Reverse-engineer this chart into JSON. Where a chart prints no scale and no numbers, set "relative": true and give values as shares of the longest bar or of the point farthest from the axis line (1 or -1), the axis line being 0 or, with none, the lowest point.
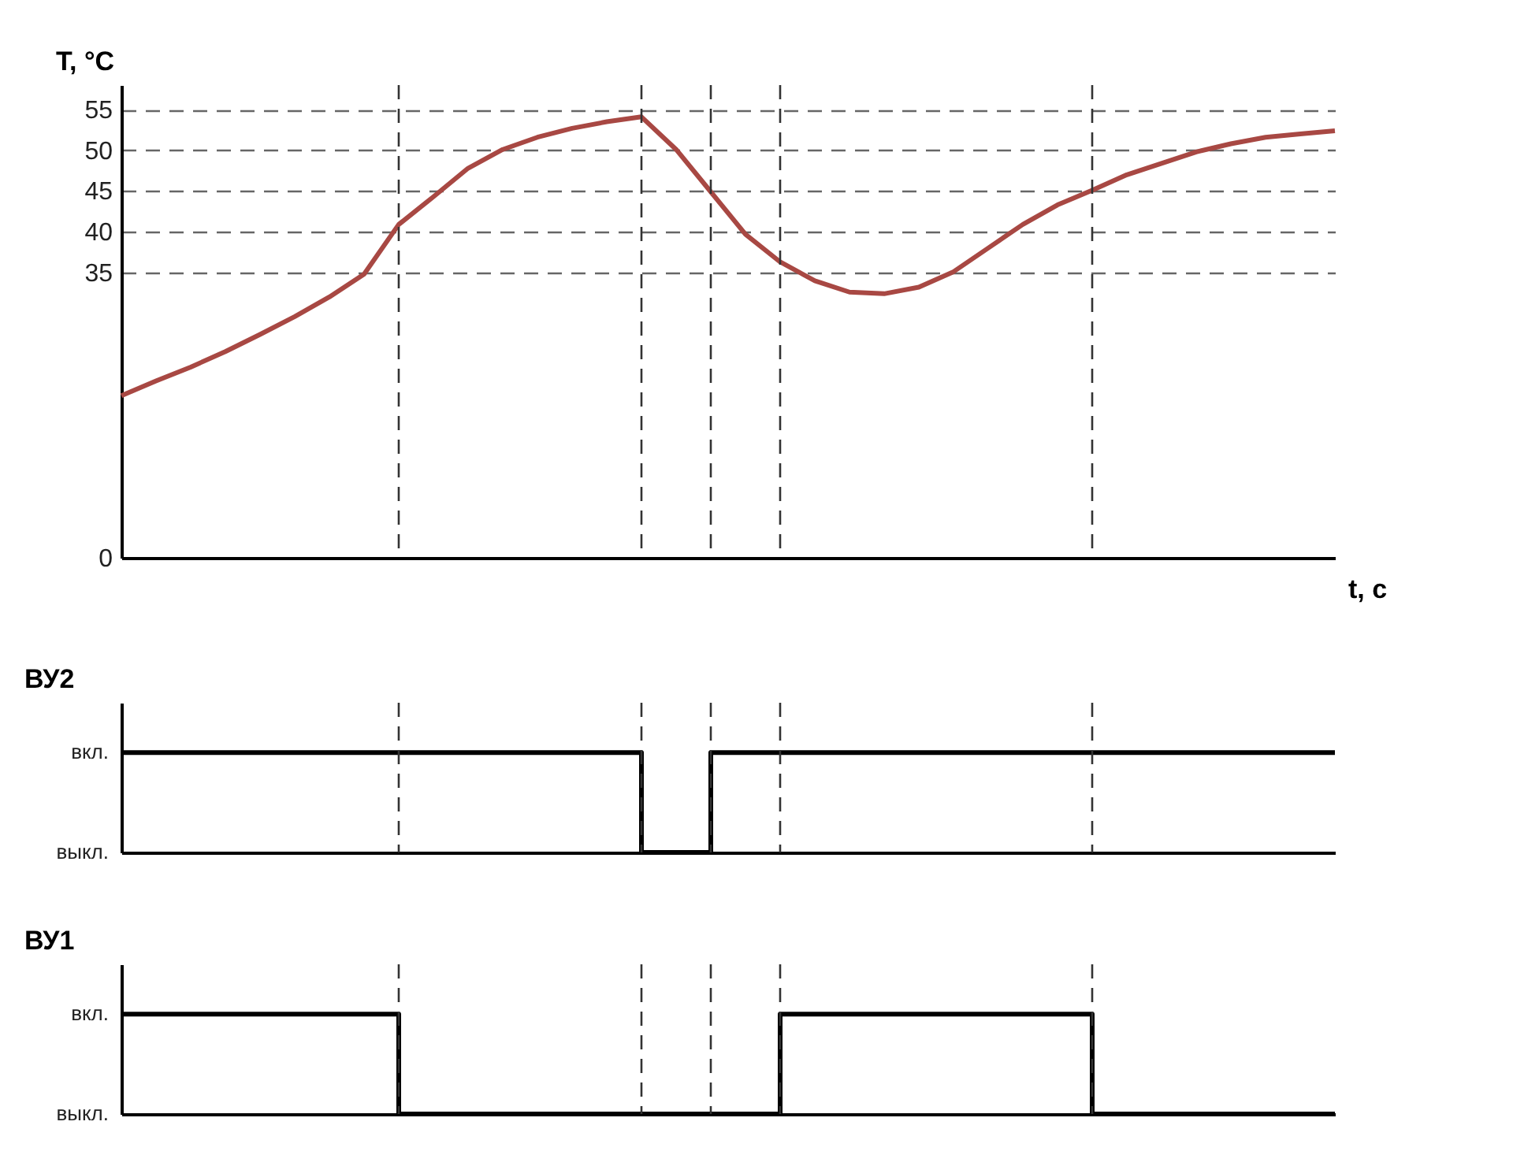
{
  "chart_data": [
    {
      "type": "line",
      "ylabel": "T, °C",
      "xlabel": "t, c",
      "tick_labels": "y",
      "ylim": [
        0,
        58
      ],
      "yticks": [
        0,
        35,
        40,
        45,
        50,
        55
      ],
      "grid": true,
      "categories": [
        null,
        null,
        null,
        null,
        null,
        null,
        null,
        null,
        null,
        null,
        null,
        null,
        null,
        null,
        null,
        null,
        null,
        null,
        null,
        null,
        null,
        null,
        null,
        null,
        null,
        null,
        null,
        null,
        null,
        null,
        null,
        null,
        null,
        null,
        null,
        null
      ],
      "series": [
        {
          "color": "#a84843",
          "values": [
            19.9,
            21.7,
            23.4,
            25.3,
            27.4,
            29.6,
            32,
            34.8,
            40.9,
            44.3,
            47.8,
            50.1,
            51.6,
            52.7,
            53.5,
            54.1,
            50.1,
            44.9,
            39.7,
            36.3,
            34,
            32.6,
            32.4,
            33.2,
            35.1,
            38,
            40.9,
            43.3,
            45.1,
            47,
            48.4,
            49.8,
            50.8,
            51.6,
            52,
            52.4
          ]
        }
      ]
    },
    {
      "type": "step",
      "ylabel": "ВУ2",
      "tick_labels": false,
      "relative": true,
      "grid": true,
      "annotations": [
        "вкл.",
        "выкл."
      ],
      "categories": [
        null,
        null,
        null,
        null,
        null,
        null,
        null,
        null,
        null,
        null,
        null,
        null,
        null,
        null,
        null,
        null,
        null,
        null,
        null,
        null,
        null,
        null,
        null,
        null,
        null,
        null,
        null,
        null,
        null,
        null,
        null,
        null,
        null,
        null,
        null,
        null
      ],
      "series": [
        {
          "color": "#000000",
          "values": [
            1,
            1,
            1,
            1,
            1,
            1,
            1,
            1,
            1,
            1,
            1,
            1,
            1,
            1,
            1,
            0,
            0,
            1,
            1,
            1,
            1,
            1,
            1,
            1,
            1,
            1,
            1,
            1,
            1,
            1,
            1,
            1,
            1,
            1,
            1,
            1
          ]
        }
      ]
    },
    {
      "type": "step",
      "ylabel": "ВУ1",
      "tick_labels": false,
      "relative": true,
      "grid": true,
      "annotations": [
        "вкл.",
        "выкл."
      ],
      "categories": [
        null,
        null,
        null,
        null,
        null,
        null,
        null,
        null,
        null,
        null,
        null,
        null,
        null,
        null,
        null,
        null,
        null,
        null,
        null,
        null,
        null,
        null,
        null,
        null,
        null,
        null,
        null,
        null,
        null,
        null,
        null,
        null,
        null,
        null,
        null,
        null
      ],
      "series": [
        {
          "color": "#000000",
          "values": [
            1,
            1,
            1,
            1,
            1,
            1,
            1,
            1,
            0,
            0,
            0,
            0,
            0,
            0,
            0,
            0,
            0,
            0,
            0,
            1,
            1,
            1,
            1,
            1,
            1,
            1,
            1,
            1,
            0,
            0,
            0,
            0,
            0,
            0,
            0,
            0
          ]
        }
      ]
    }
  ]
}
